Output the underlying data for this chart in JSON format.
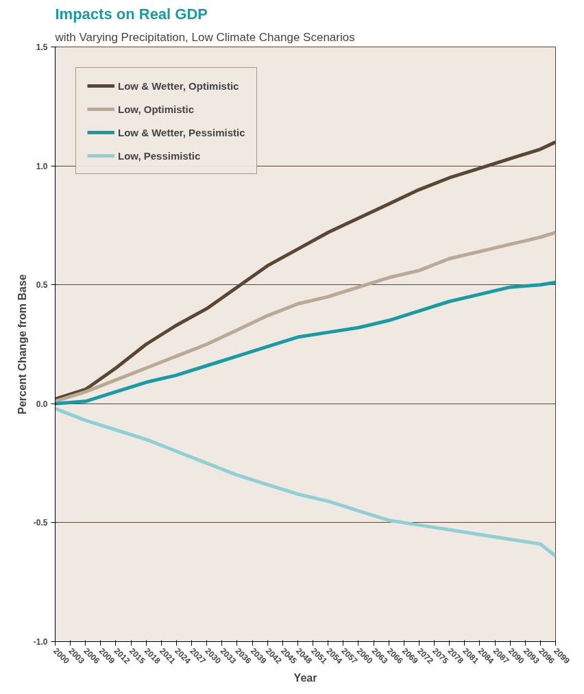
{
  "chart_data": {
    "type": "line",
    "title": "Impacts on Real GDP",
    "subtitle": "with Varying Precipitation, Low Climate Change Scenarios",
    "xlabel": "Year",
    "ylabel": "Percent Change from Base",
    "x": [
      2000,
      2006,
      2012,
      2018,
      2024,
      2030,
      2036,
      2042,
      2048,
      2054,
      2060,
      2066,
      2072,
      2078,
      2084,
      2090,
      2096,
      2099
    ],
    "series": [
      {
        "name": "Low & Wetter, Optimistic",
        "color": "#5a4632",
        "values": [
          0.02,
          0.06,
          0.15,
          0.25,
          0.33,
          0.4,
          0.49,
          0.58,
          0.65,
          0.72,
          0.78,
          0.84,
          0.9,
          0.95,
          0.99,
          1.03,
          1.07,
          1.1
        ]
      },
      {
        "name": "Low, Optimistic",
        "color": "#b9a995",
        "values": [
          0.01,
          0.05,
          0.1,
          0.15,
          0.2,
          0.25,
          0.31,
          0.37,
          0.42,
          0.45,
          0.49,
          0.53,
          0.56,
          0.61,
          0.64,
          0.67,
          0.7,
          0.72
        ]
      },
      {
        "name": "Low & Wetter, Pessimistic",
        "color": "#1a9ba3",
        "values": [
          0.0,
          0.01,
          0.05,
          0.09,
          0.12,
          0.16,
          0.2,
          0.24,
          0.28,
          0.3,
          0.32,
          0.35,
          0.39,
          0.43,
          0.46,
          0.49,
          0.5,
          0.51
        ]
      },
      {
        "name": "Low, Pessimistic",
        "color": "#90d0d4",
        "values": [
          -0.02,
          -0.07,
          -0.11,
          -0.15,
          -0.2,
          -0.25,
          -0.3,
          -0.34,
          -0.38,
          -0.41,
          -0.45,
          -0.49,
          -0.51,
          -0.53,
          -0.55,
          -0.57,
          -0.59,
          -0.64
        ]
      }
    ],
    "xlim": [
      2000,
      2099
    ],
    "xticks": [
      2000,
      2003,
      2006,
      2009,
      2012,
      2015,
      2018,
      2021,
      2024,
      2027,
      2030,
      2033,
      2036,
      2039,
      2042,
      2045,
      2048,
      2051,
      2054,
      2057,
      2060,
      2063,
      2066,
      2069,
      2072,
      2075,
      2078,
      2081,
      2084,
      2087,
      2090,
      2093,
      2096,
      2099
    ],
    "ylim": [
      -1.0,
      1.5
    ],
    "yticks": [
      {
        "value": -1.0,
        "label": "-1.0"
      },
      {
        "value": -0.5,
        "label": "-0.5"
      },
      {
        "value": 0,
        "label": "0.0"
      },
      {
        "value": 0.5,
        "label": "0.5"
      },
      {
        "value": 1.0,
        "label": "1.0"
      },
      {
        "value": 1.5,
        "label": "1.5"
      }
    ],
    "grid": "y",
    "legend": "top left",
    "marker": "none",
    "line_style": "solid"
  }
}
